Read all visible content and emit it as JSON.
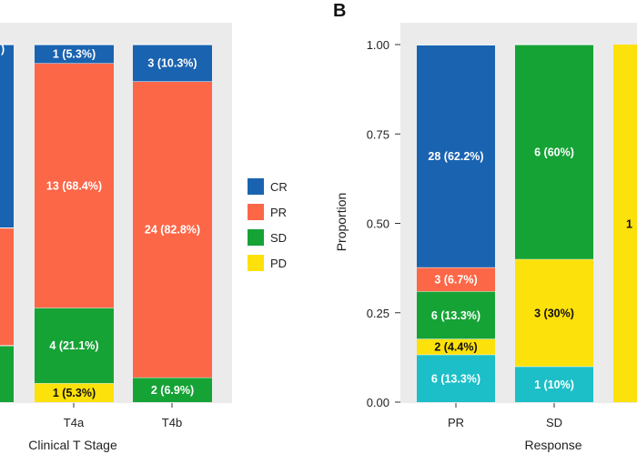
{
  "colors": {
    "CR": "#1a63b0",
    "PR": "#fc6748",
    "SD": "#16a336",
    "PD": "#fde10a",
    "Other": "#1cbfc8",
    "panel_bg": "#ebebeb",
    "dark_text": "#111111",
    "light_text": "#ffffff"
  },
  "legend": {
    "items": [
      {
        "key": "CR",
        "label": "CR"
      },
      {
        "key": "PR",
        "label": "PR"
      },
      {
        "key": "SD",
        "label": "SD"
      },
      {
        "key": "PD",
        "label": "PD"
      }
    ]
  },
  "chart_data": [
    {
      "type": "bar",
      "stacked": true,
      "panel_letter": "",
      "xlabel": "Clinical T Stage",
      "ylabel": "",
      "ylim": [
        0,
        1
      ],
      "categories": [
        "T4a",
        "T4b"
      ],
      "stack_order": [
        "PD",
        "SD",
        "PR",
        "CR"
      ],
      "series": [
        {
          "name": "CR",
          "values": [
            0.053,
            0.103
          ],
          "labels": [
            "1 (5.3%)",
            "3 (10.3%)"
          ]
        },
        {
          "name": "PR",
          "values": [
            0.684,
            0.828
          ],
          "labels": [
            "13 (68.4%)",
            "24 (82.8%)"
          ]
        },
        {
          "name": "SD",
          "values": [
            0.211,
            0.069
          ],
          "labels": [
            "4 (21.1%)",
            "2 (6.9%)"
          ]
        },
        {
          "name": "PD",
          "values": [
            0.053,
            0.0
          ],
          "labels": [
            "1 (5.3%)",
            ""
          ]
        }
      ],
      "partial_left_column": [
        {
          "key": "CR",
          "from": 0.487,
          "to": 1.0,
          "label": ")"
        },
        {
          "key": "PR",
          "from": 0.158,
          "to": 0.487,
          "label": ""
        },
        {
          "key": "SD",
          "from": 0.0,
          "to": 0.158,
          "label": ""
        }
      ]
    },
    {
      "type": "bar",
      "stacked": true,
      "panel_letter": "B",
      "xlabel": "Response",
      "ylabel": "Proportion",
      "ylim": [
        0,
        1
      ],
      "yticks": [
        "0.00",
        "0.25",
        "0.50",
        "0.75",
        "1.00"
      ],
      "categories": [
        "PR",
        "SD"
      ],
      "segments": [
        [
          {
            "key": "Other",
            "value": 0.133,
            "label": "6 (13.3%)"
          },
          {
            "key": "PD",
            "value": 0.044,
            "label": "2 (4.4%)"
          },
          {
            "key": "SD",
            "value": 0.133,
            "label": "6 (13.3%)"
          },
          {
            "key": "PR",
            "value": 0.067,
            "label": "3 (6.7%)"
          },
          {
            "key": "CR",
            "value": 0.622,
            "label": "28 (62.2%)"
          }
        ],
        [
          {
            "key": "Other",
            "value": 0.1,
            "label": "1 (10%)"
          },
          {
            "key": "PD",
            "value": 0.3,
            "label": "3 (30%)"
          },
          {
            "key": "SD",
            "value": 0.6,
            "label": "6 (60%)"
          }
        ]
      ],
      "partial_right_column": {
        "key": "PD",
        "label": "1"
      }
    }
  ]
}
